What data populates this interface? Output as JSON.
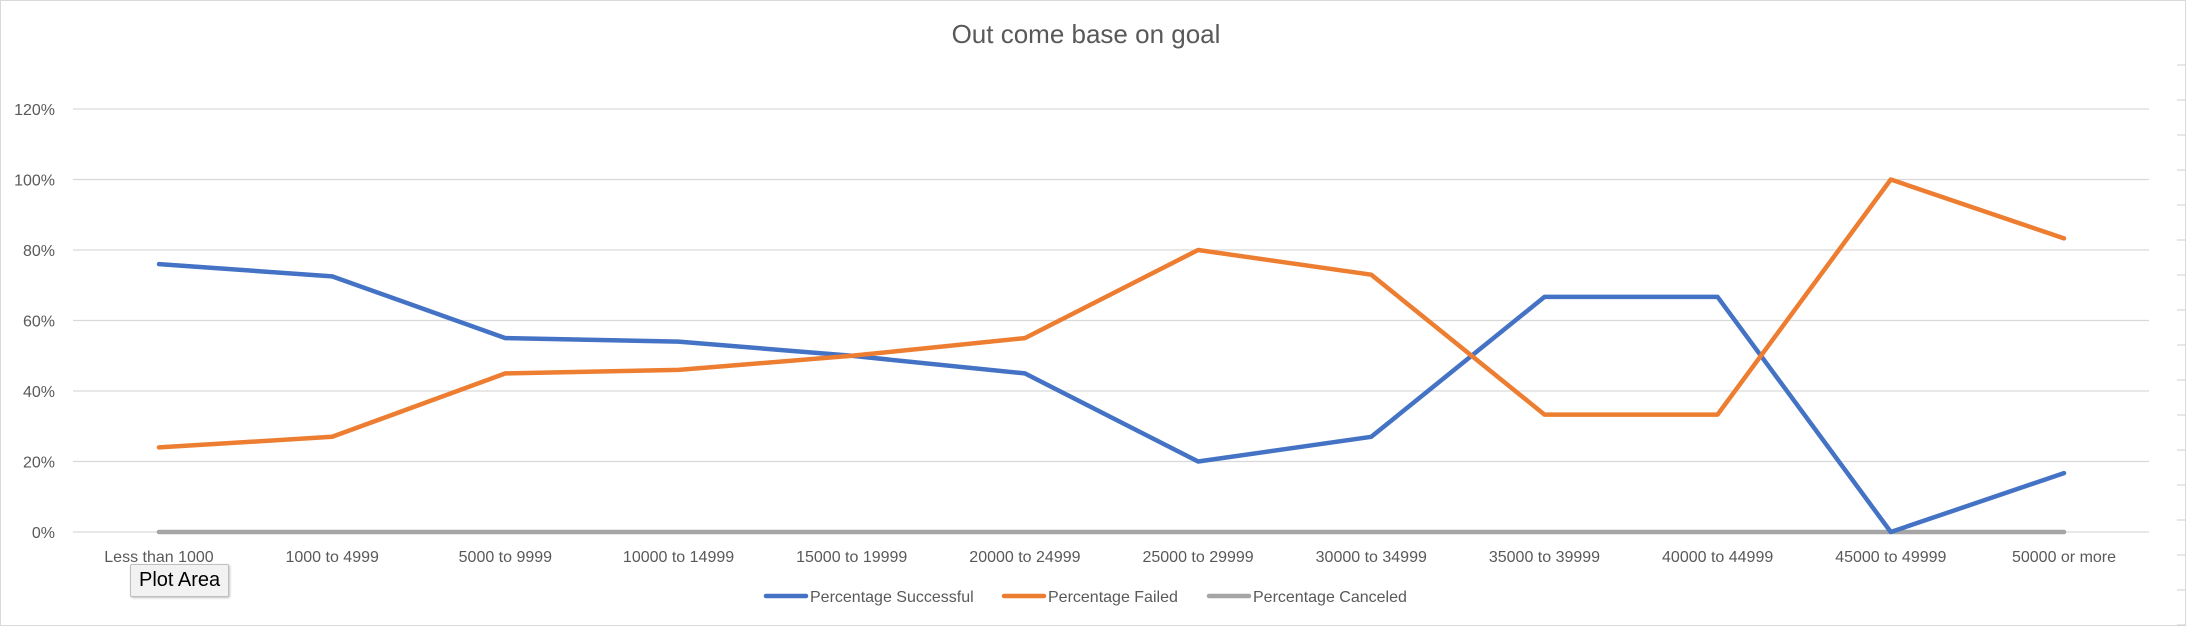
{
  "colors": {
    "series_successful": "#4472C4",
    "series_failed": "#ED7D31",
    "series_canceled": "#A5A5A5",
    "gridline": "#D9D9D9",
    "text": "#595959"
  },
  "tooltip": {
    "label": "Plot Area"
  },
  "chart_data": {
    "type": "line",
    "title": "Out come base on goal",
    "xlabel": "",
    "ylabel": "",
    "ylim": [
      0,
      1.2
    ],
    "grid": true,
    "legend_position": "bottom",
    "yticks": [
      "0%",
      "20%",
      "40%",
      "60%",
      "80%",
      "100%",
      "120%"
    ],
    "categories": [
      "Less than 1000",
      "1000 to 4999",
      "5000 to 9999",
      "10000 to 14999",
      "15000 to 19999",
      "20000 to 24999",
      "25000 to 29999",
      "30000 to 34999",
      "35000 to 39999",
      "40000 to 44999",
      "45000 to 49999",
      "50000 or more"
    ],
    "series": [
      {
        "name": "Percentage Successful",
        "color": "#4472C4",
        "values": [
          0.76,
          0.725,
          0.55,
          0.54,
          0.5,
          0.45,
          0.2,
          0.27,
          0.667,
          0.667,
          0.0,
          0.167
        ]
      },
      {
        "name": "Percentage Failed",
        "color": "#ED7D31",
        "values": [
          0.24,
          0.27,
          0.45,
          0.46,
          0.5,
          0.55,
          0.8,
          0.73,
          0.333,
          0.333,
          1.0,
          0.833
        ]
      },
      {
        "name": "Percentage Canceled",
        "color": "#A5A5A5",
        "values": [
          0,
          0,
          0,
          0,
          0,
          0,
          0,
          0,
          0,
          0,
          0,
          0
        ]
      }
    ]
  }
}
